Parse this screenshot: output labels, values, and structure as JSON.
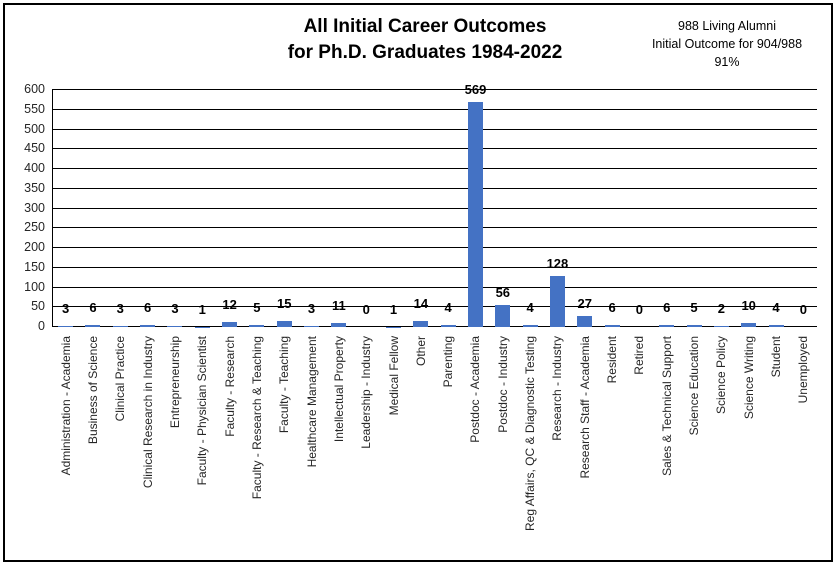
{
  "title": {
    "line1": "All Initial Career Outcomes",
    "line2": "for Ph.D. Graduates 1984-2022"
  },
  "note": {
    "line1": "988 Living Alumni",
    "line2": "Initial Outcome for 904/988",
    "line3": "91%"
  },
  "colors": {
    "bar": "#4472C4",
    "gridline": "#000000",
    "axis_text": "#262626",
    "border": "#000000",
    "background": "#ffffff"
  },
  "chart_data": {
    "type": "bar",
    "title": "All Initial Career Outcomes for Ph.D. Graduates 1984-2022",
    "xlabel": "",
    "ylabel": "",
    "ylim": [
      0,
      600
    ],
    "ytick_step": 50,
    "grid": true,
    "bar_color": "#4472C4",
    "data_labels": true,
    "categories": [
      "Administration - Academia",
      "Business of Science",
      "Clinical Practice",
      "Clinical Research in Industry",
      "Entrepreneurship",
      "Faculty - Physician Scientist",
      "Faculty - Research",
      "Faculty - Research & Teaching",
      "Faculty - Teaching",
      "Healthcare Management",
      "Intellectual Property",
      "Leadership - Industry",
      "Medical Fellow",
      "Other",
      "Parenting",
      "Postdoc - Academia",
      "Postdoc - Industry",
      "Reg Affairs, QC & Diagnostic Testing",
      "Research - Industry",
      "Research Staff - Academia",
      "Resident",
      "Retired",
      "Sales & Technical Support",
      "Science Education",
      "Science Policy",
      "Science Writing",
      "Student",
      "Unemployed"
    ],
    "values": [
      3,
      6,
      3,
      6,
      3,
      1,
      12,
      5,
      15,
      3,
      11,
      0,
      1,
      14,
      4,
      569,
      56,
      4,
      128,
      27,
      6,
      0,
      6,
      5,
      2,
      10,
      4,
      0
    ]
  }
}
